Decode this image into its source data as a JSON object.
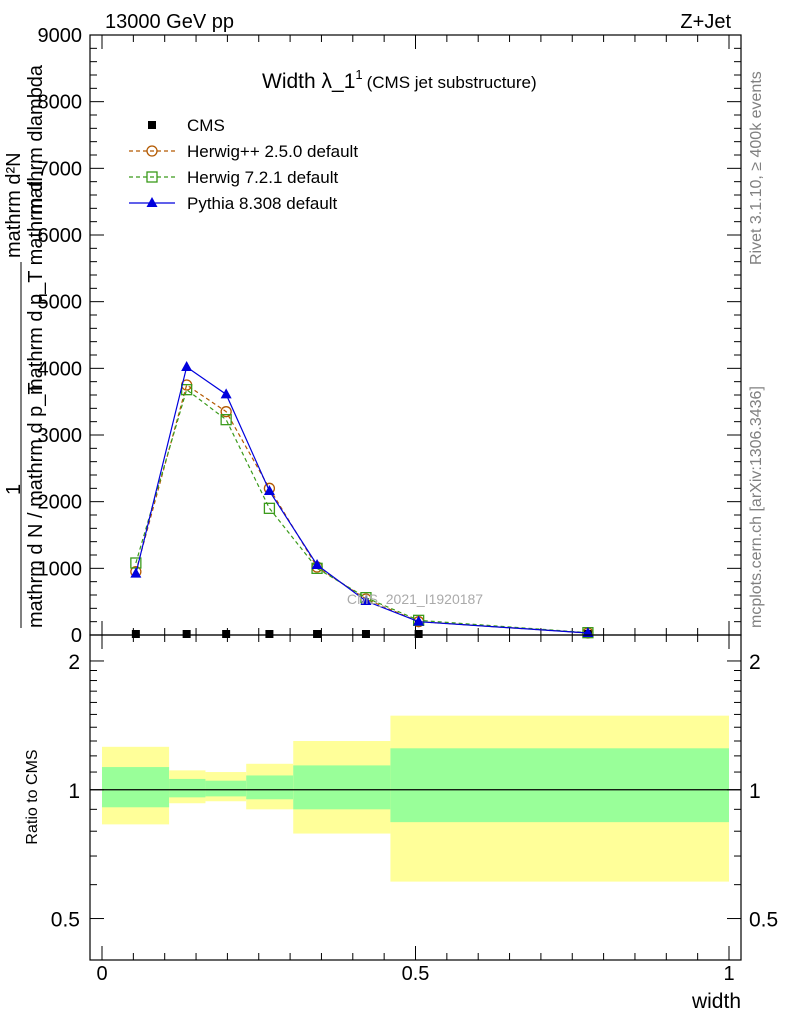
{
  "header": {
    "left": "13000 GeV pp",
    "right": "Z+Jet"
  },
  "side_text": {
    "rivet": "Rivet 3.1.10, ≥ 400k events",
    "mcplots": "mcplots.cern.ch [arXiv:1306.3436]"
  },
  "watermark": "CMS_2021_I1920187",
  "chart_data": [
    {
      "type": "line",
      "title": "Width λ_1",
      "title_sup": "1",
      "subtitle": "(CMS jet substructure)",
      "ylabel_numerator": "mathrm d²N",
      "ylabel_numerator_tail": "mathrm dlambda",
      "ylabel_middle": "mathrm d p_T mathrm d",
      "ylabel_one": "1",
      "ylabel_denominator": "mathrm d N / mathrm d p_T",
      "xlabel": "width",
      "xlim": [
        0,
        1
      ],
      "ylim": [
        0,
        9000
      ],
      "y_ticks": [
        0,
        1000,
        2000,
        3000,
        4000,
        5000,
        6000,
        7000,
        8000,
        9000
      ],
      "y_tick_labels": [
        "0",
        "1000",
        "2000",
        "3000",
        "4000",
        "5000",
        "6000",
        "7000",
        "8000",
        "9000"
      ],
      "x": [
        0.054,
        0.135,
        0.198,
        0.267,
        0.343,
        0.421,
        0.505,
        0.775
      ],
      "legend": [
        "CMS",
        "Herwig++ 2.5.0 default",
        "Herwig 7.2.1 default",
        "Pythia 8.308 default"
      ],
      "legend_position": "top-left",
      "series": [
        {
          "name": "CMS",
          "color": "#000000",
          "marker": "square",
          "values": [
            0,
            0,
            0,
            0,
            0,
            0,
            0,
            0
          ]
        },
        {
          "name": "Herwig++ 2.5.0 default",
          "color": "#b35900",
          "marker": "open-circle",
          "dashed": true,
          "values": [
            950,
            3750,
            3350,
            2200,
            1020,
            540,
            200,
            30
          ]
        },
        {
          "name": "Herwig 7.2.1 default",
          "color": "#3a9a1a",
          "marker": "open-square",
          "dashed": true,
          "values": [
            1080,
            3680,
            3230,
            1900,
            1000,
            560,
            220,
            35
          ]
        },
        {
          "name": "Pythia 8.308 default",
          "color": "#0000dd",
          "marker": "triangle",
          "values": [
            920,
            4020,
            3610,
            2160,
            1050,
            510,
            200,
            30
          ]
        }
      ]
    },
    {
      "type": "area",
      "ylabel": "Ratio to CMS",
      "xlabel": "width",
      "xlim": [
        0,
        1
      ],
      "ylim": [
        0.4,
        2.3
      ],
      "y_scale": "log",
      "y_ticks": [
        0.5,
        1,
        2
      ],
      "y_tick_labels": [
        "0.5",
        "1",
        "2"
      ],
      "x_ticks": [
        0,
        0.5,
        1
      ],
      "x_tick_labels": [
        "0",
        "0.5",
        "1"
      ],
      "reference": 1,
      "bins": [
        {
          "x0": 0.0,
          "x1": 0.107,
          "y_low": 0.83,
          "y_high": 1.26,
          "g_low": 0.91,
          "g_high": 1.13
        },
        {
          "x0": 0.107,
          "x1": 0.165,
          "y_low": 0.93,
          "y_high": 1.11,
          "g_low": 0.96,
          "g_high": 1.06
        },
        {
          "x0": 0.165,
          "x1": 0.23,
          "y_low": 0.94,
          "y_high": 1.1,
          "g_low": 0.965,
          "g_high": 1.05
        },
        {
          "x0": 0.23,
          "x1": 0.305,
          "y_low": 0.9,
          "y_high": 1.15,
          "g_low": 0.95,
          "g_high": 1.08
        },
        {
          "x0": 0.305,
          "x1": 0.46,
          "y_low": 0.79,
          "y_high": 1.3,
          "g_low": 0.9,
          "g_high": 1.14
        },
        {
          "x0": 0.46,
          "x1": 1.0,
          "y_low": 0.61,
          "y_high": 1.49,
          "g_low": 0.84,
          "g_high": 1.25
        }
      ],
      "band_colors": {
        "outer": "#ffff99",
        "inner": "#99ff99"
      }
    }
  ]
}
